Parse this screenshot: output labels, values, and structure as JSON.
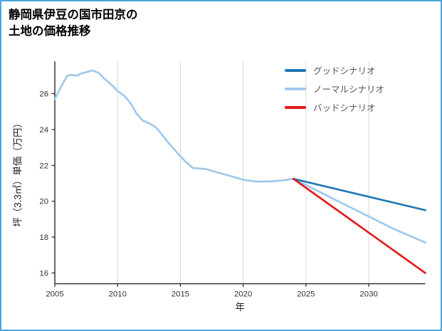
{
  "title": {
    "line1": "静岡県伊豆の国市田京の",
    "line2": "土地の価格推移"
  },
  "colors": {
    "frame_border": "#4ba6dc",
    "grid": "#d9d9d9",
    "axis": "#262626",
    "tick_label": "#333333",
    "axis_label": "#222222",
    "legend_text": "#555555"
  },
  "chart_data": {
    "type": "line",
    "title": "静岡県伊豆の国市田京の土地の価格推移",
    "xlabel": "年",
    "ylabel": "坪（3.3㎡）単価（万円）",
    "xlim": [
      2005,
      2034.5
    ],
    "ylim": [
      15.4,
      27.8
    ],
    "xticks": [
      2005,
      2010,
      2015,
      2020,
      2025,
      2030
    ],
    "yticks": [
      16,
      18,
      20,
      22,
      24,
      26
    ],
    "grid": "vertical",
    "legend_position": "upper-right",
    "series": [
      {
        "id": "good",
        "name": "グッドシナリオ",
        "color": "#1f77b4",
        "x": [
          2024,
          2034.5
        ],
        "y": [
          21.25,
          19.5
        ]
      },
      {
        "id": "normal",
        "name": "ノーマルシナリオ",
        "color": "#a0c8ea",
        "x": [
          2005,
          2005.5,
          2006,
          2006.3,
          2006.8,
          2007,
          2007.5,
          2008,
          2008.5,
          2009,
          2009.5,
          2010,
          2010.5,
          2011,
          2011.5,
          2012,
          2012.5,
          2013,
          2013.5,
          2014,
          2014.5,
          2015,
          2015.5,
          2016,
          2017,
          2018,
          2019,
          2020,
          2021,
          2022,
          2023,
          2024,
          2026,
          2028,
          2030,
          2032,
          2034.5
        ],
        "y": [
          25.7,
          26.4,
          27.0,
          27.05,
          27.0,
          27.1,
          27.2,
          27.3,
          27.15,
          26.8,
          26.5,
          26.15,
          25.9,
          25.5,
          24.9,
          24.5,
          24.35,
          24.15,
          23.75,
          23.3,
          22.9,
          22.5,
          22.15,
          21.85,
          21.8,
          21.6,
          21.4,
          21.2,
          21.1,
          21.1,
          21.15,
          21.25,
          20.55,
          19.85,
          19.15,
          18.45,
          17.7
        ]
      },
      {
        "id": "bad",
        "name": "バッドシナリオ",
        "color": "#e41a1c",
        "x": [
          2024,
          2034.5
        ],
        "y": [
          21.25,
          16.0
        ]
      }
    ]
  }
}
